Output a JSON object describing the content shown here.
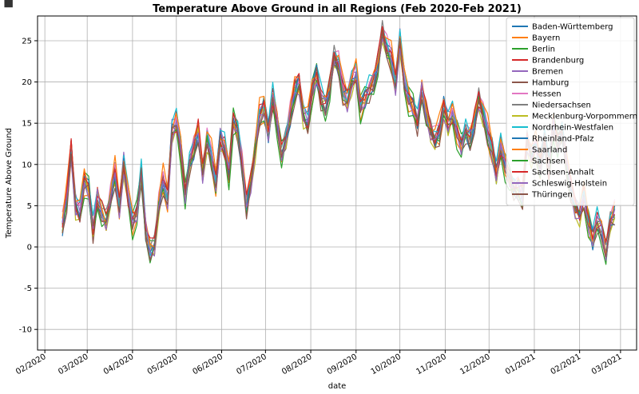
{
  "toolbar": {
    "icon": "bar-chart-icon"
  },
  "chart_data": {
    "type": "line",
    "title": "Temperature Above Ground in all Regions (Feb 2020-Feb 2021)",
    "xlabel": "date",
    "ylabel": "Temperature Above Ground",
    "ylim": [
      -12.5,
      28
    ],
    "xlim_days": [
      -5,
      405
    ],
    "x_start": "2020-02-01",
    "grid": true,
    "legend": "top-right",
    "xticks": [
      {
        "label": "02/2020",
        "day": 0
      },
      {
        "label": "03/2020",
        "day": 29
      },
      {
        "label": "04/2020",
        "day": 60
      },
      {
        "label": "05/2020",
        "day": 90
      },
      {
        "label": "06/2020",
        "day": 121
      },
      {
        "label": "07/2020",
        "day": 151
      },
      {
        "label": "08/2020",
        "day": 182
      },
      {
        "label": "09/2020",
        "day": 213
      },
      {
        "label": "10/2020",
        "day": 243
      },
      {
        "label": "11/2020",
        "day": 274
      },
      {
        "label": "12/2020",
        "day": 304
      },
      {
        "label": "01/2021",
        "day": 335
      },
      {
        "label": "02/2021",
        "day": 366
      },
      {
        "label": "03/2021",
        "day": 394
      }
    ],
    "yticks": [
      -10,
      -5,
      0,
      5,
      10,
      15,
      20,
      25
    ],
    "x": [
      12,
      15,
      18,
      21,
      24,
      27,
      30,
      33,
      36,
      39,
      42,
      45,
      48,
      51,
      54,
      57,
      60,
      63,
      66,
      69,
      72,
      75,
      78,
      81,
      84,
      87,
      90,
      93,
      96,
      99,
      102,
      105,
      108,
      111,
      114,
      117,
      120,
      123,
      126,
      129,
      132,
      135,
      138,
      141,
      144,
      147,
      150,
      153,
      156,
      159,
      162,
      165,
      168,
      171,
      174,
      177,
      180,
      183,
      186,
      189,
      192,
      195,
      198,
      201,
      204,
      207,
      210,
      213,
      216,
      219,
      222,
      225,
      228,
      231,
      234,
      237,
      240,
      243,
      246,
      249,
      252,
      255,
      258,
      261,
      264,
      267,
      270,
      273,
      276,
      279,
      282,
      285,
      288,
      291,
      294,
      297,
      300,
      303,
      306,
      309,
      312,
      315,
      318,
      321,
      324,
      327,
      330,
      333,
      336,
      339,
      342,
      345,
      348,
      351,
      354,
      357,
      360,
      363,
      366,
      369,
      372,
      375,
      378,
      381,
      384,
      387,
      390
    ],
    "base": [
      2.5,
      6,
      12,
      5,
      4,
      8,
      7,
      2,
      6,
      4,
      3,
      6,
      9,
      5,
      10,
      6,
      3,
      4,
      9,
      2,
      -0.5,
      0,
      5,
      8,
      6,
      14,
      15,
      12,
      6,
      10,
      12,
      14,
      9,
      13,
      11,
      8,
      13,
      12,
      9,
      15,
      14,
      10,
      5,
      8,
      12,
      16,
      17,
      14,
      18,
      15,
      11,
      13,
      16,
      19,
      20,
      16,
      15,
      19,
      21,
      18,
      17,
      19,
      23,
      22,
      19,
      18,
      20,
      21,
      17,
      18,
      19,
      20,
      22,
      26,
      24,
      23,
      20,
      25,
      20,
      18,
      17,
      15,
      19,
      16,
      14,
      13,
      14,
      17,
      15,
      16,
      14,
      12,
      14,
      13,
      15,
      18,
      16,
      14,
      12,
      9,
      12,
      10,
      8,
      7,
      7,
      6,
      13,
      11,
      12,
      10,
      13,
      9,
      15,
      12,
      14,
      10,
      7,
      5,
      4,
      6,
      3,
      1,
      3,
      2,
      -1,
      3,
      4
    ],
    "series": [
      {
        "name": "Baden-Württemberg",
        "color": "#1f77b4",
        "offset": 0.0,
        "phase": 0
      },
      {
        "name": "Bayern",
        "color": "#ff7f0e",
        "offset": -0.6,
        "phase": 1
      },
      {
        "name": "Berlin",
        "color": "#2ca02c",
        "offset": 0.5,
        "phase": 2
      },
      {
        "name": "Brandenburg",
        "color": "#d62728",
        "offset": 0.3,
        "phase": 3
      },
      {
        "name": "Bremen",
        "color": "#9467bd",
        "offset": 0.1,
        "phase": 4
      },
      {
        "name": "Hamburg",
        "color": "#8c564b",
        "offset": -0.2,
        "phase": 5
      },
      {
        "name": "Hessen",
        "color": "#e377c2",
        "offset": 0.4,
        "phase": 6
      },
      {
        "name": "Niedersachsen",
        "color": "#7f7f7f",
        "offset": 0.2,
        "phase": 7
      },
      {
        "name": "Mecklenburg-Vorpommern",
        "color": "#bcbd22",
        "offset": -0.4,
        "phase": 8
      },
      {
        "name": "Nordrhein-Westfalen",
        "color": "#17becf",
        "offset": 0.6,
        "phase": 9
      },
      {
        "name": "Rheinland-Pfalz",
        "color": "#1f77b4",
        "offset": 0.0,
        "phase": 10
      },
      {
        "name": "Saarland",
        "color": "#ff7f0e",
        "offset": 0.8,
        "phase": 11
      },
      {
        "name": "Sachsen",
        "color": "#2ca02c",
        "offset": -0.8,
        "phase": 12
      },
      {
        "name": "Sachsen-Anhalt",
        "color": "#d62728",
        "offset": 0.3,
        "phase": 13
      },
      {
        "name": "Schleswig-Holstein",
        "color": "#9467bd",
        "offset": -0.3,
        "phase": 14
      },
      {
        "name": "Thüringen",
        "color": "#8c564b",
        "offset": -0.5,
        "phase": 15
      }
    ]
  }
}
